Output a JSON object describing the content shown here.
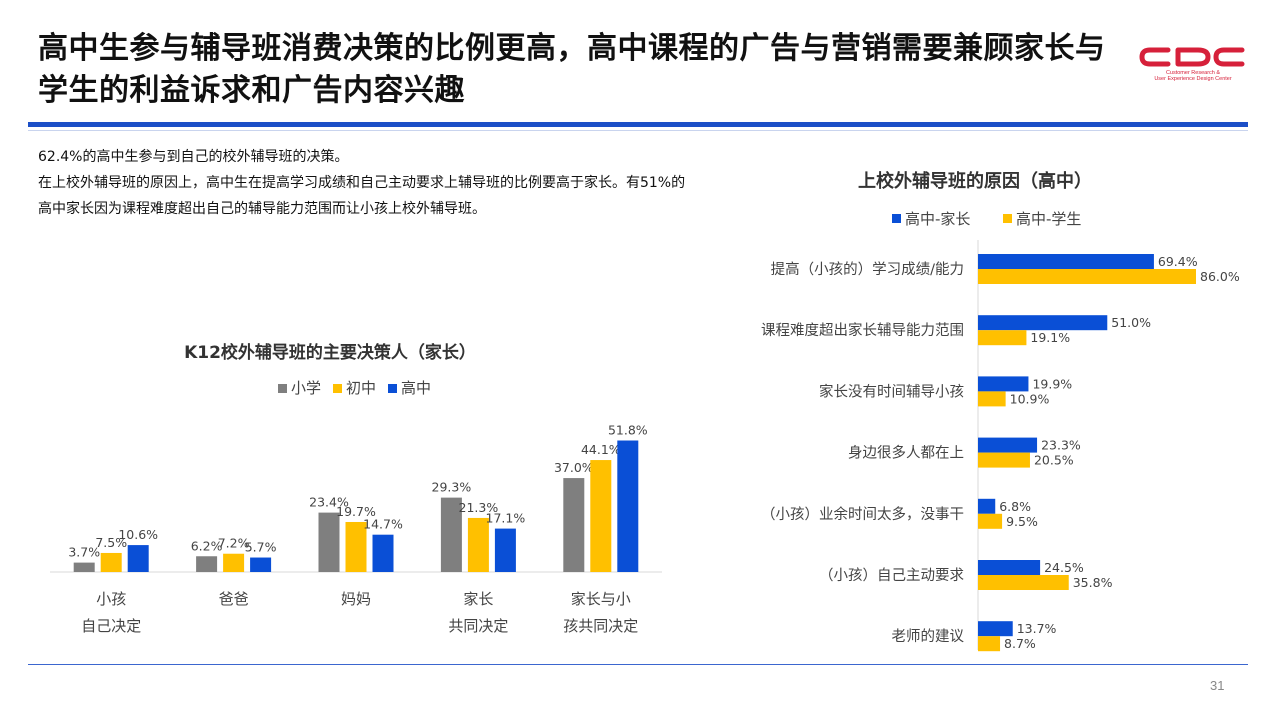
{
  "header": {
    "title": "高中生参与辅导班消费决策的比例更高，高中课程的广告与营销需要兼顾家长与学生的利益诉求和广告内容兴趣",
    "logo_text": "CDC",
    "logo_sub_line1": "Customer Research &",
    "logo_sub_line2": "User Experience Design Center"
  },
  "notes": [
    "62.4%的高中生参与到自己的校外辅导班的决策。",
    "在上校外辅导班的原因上，高中生在提高学习成绩和自己主动要求上辅导班的比例要高于家长。有51%的高中家长因为课程难度超出自己的辅导能力范围而让小孩上校外辅导班。"
  ],
  "page_number": "31",
  "colors": {
    "gray": "#7f7f7f",
    "yellow": "#ffc000",
    "blue": "#0a4fd6",
    "brand_red": "#d6203a",
    "brand_blue": "#1c4fc7"
  },
  "chart_data": [
    {
      "type": "bar",
      "title": "K12校外辅导班的主要决策人（家长）",
      "categories": [
        [
          "小孩",
          "自己决定"
        ],
        [
          "爸爸"
        ],
        [
          "妈妈"
        ],
        [
          "家长",
          "共同决定"
        ],
        [
          "家长与小",
          "孩共同决定"
        ]
      ],
      "series": [
        {
          "name": "小学",
          "color": "#7f7f7f",
          "values": [
            3.7,
            6.2,
            23.4,
            29.3,
            37.0
          ],
          "labels": [
            "3.7%",
            "6.2%",
            "23.4%",
            "29.3%",
            "37.0%"
          ]
        },
        {
          "name": "初中",
          "color": "#ffc000",
          "values": [
            7.5,
            7.2,
            19.7,
            21.3,
            44.1
          ],
          "labels": [
            "7.5%",
            "7.2%",
            "19.7%",
            "21.3%",
            "44.1%"
          ]
        },
        {
          "name": "高中",
          "color": "#0a4fd6",
          "values": [
            10.6,
            5.7,
            14.7,
            17.1,
            51.8
          ],
          "labels": [
            "10.6%",
            "5.7%",
            "14.7%",
            "17.1%",
            "51.8%"
          ]
        }
      ],
      "ylim": [
        0,
        52
      ],
      "legend": "top"
    },
    {
      "type": "bar",
      "orientation": "horizontal",
      "title": "上校外辅导班的原因（高中）",
      "categories": [
        "提高（小孩的）学习成绩/能力",
        "课程难度超出家长辅导能力范围",
        "家长没有时间辅导小孩",
        "身边很多人都在上",
        "（小孩）业余时间太多，没事干",
        "（小孩）自己主动要求",
        "老师的建议"
      ],
      "series": [
        {
          "name": "高中-家长",
          "color": "#0a4fd6",
          "values": [
            69.4,
            51.0,
            19.9,
            23.3,
            6.8,
            24.5,
            13.7
          ],
          "labels": [
            "69.4%",
            "51.0%",
            "19.9%",
            "23.3%",
            "6.8%",
            "24.5%",
            "13.7%"
          ]
        },
        {
          "name": "高中-学生",
          "color": "#ffc000",
          "values": [
            86.0,
            19.1,
            10.9,
            20.5,
            9.5,
            35.8,
            8.7
          ],
          "labels": [
            "86.0%",
            "19.1%",
            "10.9%",
            "20.5%",
            "9.5%",
            "35.8%",
            "8.7%"
          ]
        }
      ],
      "xlim": [
        0,
        86
      ],
      "legend": "top"
    }
  ]
}
